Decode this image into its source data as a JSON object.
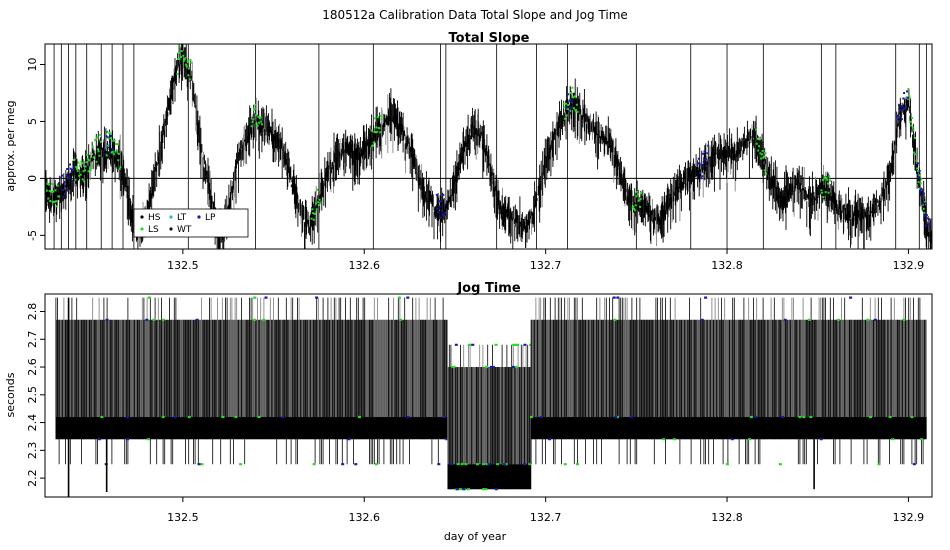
{
  "figure": {
    "title": "180512a   Calibration Data Total Slope and Jog Time"
  },
  "colors": {
    "HS": "#000000",
    "LS": "#22dd22",
    "LT": "#22bbcc",
    "WT": "#111111",
    "LP": "#1a1aa8",
    "grey": "#888888"
  },
  "chart_data": [
    {
      "type": "line",
      "title": "Total Slope",
      "xlabel": "",
      "ylabel": "approx. per meg",
      "xlim": [
        132.424,
        132.913
      ],
      "ylim": [
        -6.2,
        11.8
      ],
      "x_ticks": [
        132.5,
        132.6,
        132.7,
        132.8,
        132.9
      ],
      "x_tick_labels": [
        "132.5",
        "132.6",
        "132.7",
        "132.8",
        "132.9"
      ],
      "y_ticks": [
        -5,
        0,
        5,
        10
      ],
      "y_tick_labels": [
        "-5",
        "0",
        "5",
        "10"
      ],
      "reference_line": 0,
      "legend": {
        "position": "bottom-left",
        "entries": [
          "HS",
          "LT",
          "LP",
          "LS",
          "WT"
        ]
      },
      "trace_x": [
        132.424,
        132.43,
        132.435,
        132.44,
        132.445,
        132.45,
        132.455,
        132.46,
        132.465,
        132.47,
        132.475,
        132.48,
        132.485,
        132.49,
        132.495,
        132.5,
        132.505,
        132.51,
        132.515,
        132.52,
        132.525,
        132.53,
        132.535,
        132.54,
        132.545,
        132.55,
        132.555,
        132.56,
        132.565,
        132.57,
        132.575,
        132.58,
        132.585,
        132.59,
        132.595,
        132.6,
        132.605,
        132.61,
        132.615,
        132.62,
        132.625,
        132.63,
        132.635,
        132.64,
        132.645,
        132.65,
        132.655,
        132.66,
        132.665,
        132.67,
        132.675,
        132.68,
        132.685,
        132.69,
        132.695,
        132.7,
        132.705,
        132.71,
        132.715,
        132.72,
        132.725,
        132.73,
        132.735,
        132.74,
        132.745,
        132.75,
        132.755,
        132.76,
        132.765,
        132.77,
        132.775,
        132.78,
        132.785,
        132.79,
        132.795,
        132.8,
        132.805,
        132.81,
        132.815,
        132.82,
        132.825,
        132.83,
        132.835,
        132.84,
        132.845,
        132.85,
        132.855,
        132.86,
        132.865,
        132.87,
        132.875,
        132.88,
        132.885,
        132.89,
        132.895,
        132.9,
        132.905,
        132.91,
        132.913
      ],
      "trace_y": [
        -0.5,
        -1.5,
        -0.5,
        1,
        0.5,
        2,
        3,
        3,
        2,
        -1,
        -4.5,
        -3,
        1,
        5,
        9,
        11.5,
        9,
        3,
        -1,
        -4.5,
        -2.5,
        2,
        4,
        5.5,
        5,
        4,
        3,
        0,
        -2.5,
        -4,
        -1.5,
        1,
        2.5,
        3,
        2.5,
        3,
        4,
        5,
        6,
        5,
        3,
        0.5,
        -1.5,
        -2.5,
        -2.5,
        0,
        3,
        5,
        4,
        1,
        -2,
        -3,
        -3.5,
        -4,
        -1.5,
        2,
        4,
        6,
        7,
        6,
        5,
        4,
        3.5,
        1.5,
        -1,
        -2,
        -2.5,
        -3,
        -3,
        -1,
        0,
        0.5,
        1,
        2,
        2.5,
        3,
        2.5,
        3.5,
        4,
        2,
        0,
        -1.5,
        -0.5,
        0,
        -1.5,
        -1,
        -0.5,
        -2,
        -2.5,
        -3,
        -3,
        -2.5,
        -1.5,
        1,
        6,
        7,
        1,
        -3.5,
        -5
      ]
    },
    {
      "type": "line",
      "title": "Jog Time",
      "xlabel": "day of year",
      "ylabel": "seconds",
      "xlim": [
        132.424,
        132.913
      ],
      "ylim": [
        2.132,
        2.863
      ],
      "x_ticks": [
        132.5,
        132.6,
        132.7,
        132.8,
        132.9
      ],
      "x_tick_labels": [
        "132.5",
        "132.6",
        "132.7",
        "132.8",
        "132.9"
      ],
      "y_ticks": [
        2.2,
        2.3,
        2.4,
        2.5,
        2.6,
        2.7,
        2.8
      ],
      "y_tick_labels": [
        "2.2",
        "2.3",
        "2.4",
        "2.5",
        "2.6",
        "2.7",
        "2.8"
      ],
      "segments": [
        {
          "x_start": 132.43,
          "x_end": 132.646,
          "levels": [
            2.25,
            2.34,
            2.42,
            2.77,
            2.85
          ],
          "dense_band": [
            2.34,
            2.42
          ]
        },
        {
          "x_start": 132.646,
          "x_end": 132.692,
          "levels": [
            2.16,
            2.25,
            2.6,
            2.68
          ],
          "dense_band": [
            2.16,
            2.25
          ]
        },
        {
          "x_start": 132.692,
          "x_end": 132.91,
          "levels": [
            2.25,
            2.34,
            2.42,
            2.77,
            2.85
          ],
          "dense_band": [
            2.34,
            2.42
          ]
        }
      ]
    }
  ]
}
